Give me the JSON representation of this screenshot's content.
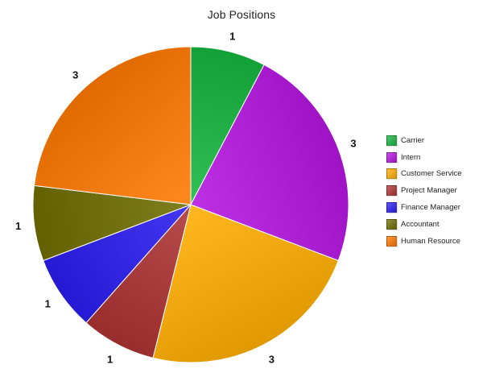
{
  "chart_data": {
    "type": "pie",
    "title": "Job Positions",
    "categories": [
      "Carrier",
      "Intern",
      "Customer Service",
      "Project Manager",
      "Finance Manager",
      "Accountant",
      "Human Resource"
    ],
    "values": [
      1,
      3,
      3,
      1,
      1,
      1,
      3
    ],
    "data_labels": [
      "1",
      "3",
      "3",
      "1",
      "1",
      "1",
      "3"
    ],
    "colors": [
      "#15b63f",
      "#b514e0",
      "#ffae00",
      "#ae3333",
      "#2a1cf0",
      "#6f6d00",
      "#ff7800"
    ],
    "legend_position": "right"
  }
}
